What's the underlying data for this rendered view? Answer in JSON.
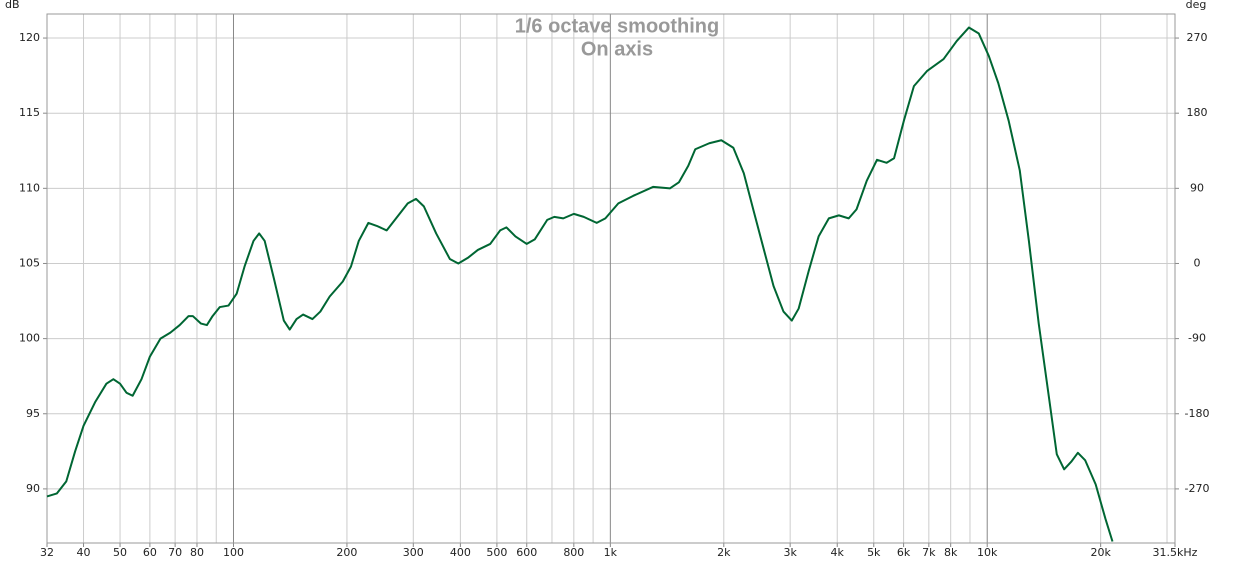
{
  "chart_data": {
    "type": "line",
    "title": "1/6 octave smoothing",
    "subtitle": "On axis",
    "ylabel": "dB",
    "y2label": "deg",
    "xlog": true,
    "grid": true,
    "color": "#006633",
    "xlim": [
      32,
      31500
    ],
    "ylim": [
      86.4,
      121.6
    ],
    "y2lim": [
      -334.8,
      298.8
    ],
    "xticks": [
      32,
      40,
      50,
      60,
      70,
      80,
      100,
      200,
      300,
      400,
      500,
      600,
      800,
      {
        "value": 1000,
        "label": "1k"
      },
      {
        "value": 2000,
        "label": "2k"
      },
      {
        "value": 3000,
        "label": "3k"
      },
      {
        "value": 4000,
        "label": "4k"
      },
      {
        "value": 5000,
        "label": "5k"
      },
      {
        "value": 6000,
        "label": "6k"
      },
      {
        "value": 7000,
        "label": "7k"
      },
      {
        "value": 8000,
        "label": "8k"
      },
      {
        "value": 10000,
        "label": "10k"
      },
      {
        "value": 20000,
        "label": "20k"
      },
      {
        "value": 31500,
        "label": "31.5kHz"
      }
    ],
    "xgrid_minor": [
      90,
      700,
      900,
      9000,
      30000
    ],
    "yticks": [
      90,
      95,
      100,
      105,
      110,
      115,
      120
    ],
    "y2ticks": [
      -270,
      -180,
      -90,
      0,
      90,
      180,
      270
    ],
    "x": [
      32,
      34,
      36,
      38,
      40,
      43,
      46,
      48,
      50,
      52,
      54,
      57,
      60,
      64,
      68,
      72,
      76,
      78,
      82,
      85,
      88,
      92,
      97,
      102,
      107,
      113,
      117,
      121,
      128,
      136,
      141,
      147,
      153,
      162,
      170,
      180,
      195,
      205,
      215,
      228,
      240,
      255,
      270,
      290,
      305,
      320,
      345,
      375,
      395,
      420,
      445,
      480,
      510,
      530,
      560,
      600,
      630,
      680,
      710,
      750,
      800,
      850,
      920,
      970,
      1050,
      1150,
      1300,
      1440,
      1520,
      1610,
      1680,
      1830,
      1970,
      2120,
      2260,
      2400,
      2550,
      2710,
      2880,
      3030,
      3160,
      3360,
      3570,
      3800,
      4040,
      4290,
      4500,
      4790,
      5100,
      5410,
      5660,
      6010,
      6390,
      6920,
      7660,
      8300,
      8940,
      9500,
      10100,
      10700,
      11400,
      12200,
      12900,
      13700,
      14600,
      15300,
      16000,
      16700,
      17400,
      18200,
      19400,
      20600,
      21500
    ],
    "values": [
      89.5,
      89.7,
      90.5,
      92.5,
      94.2,
      95.8,
      97.0,
      97.3,
      97.0,
      96.4,
      96.2,
      97.3,
      98.8,
      100.0,
      100.4,
      100.9,
      101.5,
      101.5,
      101.0,
      100.9,
      101.5,
      102.1,
      102.2,
      103.0,
      104.8,
      106.5,
      107.0,
      106.5,
      104.0,
      101.2,
      100.6,
      101.3,
      101.6,
      101.3,
      101.8,
      102.8,
      103.8,
      104.8,
      106.5,
      107.7,
      107.5,
      107.2,
      108.0,
      109.0,
      109.3,
      108.8,
      107.0,
      105.3,
      105.0,
      105.4,
      105.9,
      106.3,
      107.2,
      107.4,
      106.8,
      106.3,
      106.6,
      107.9,
      108.1,
      108.0,
      108.3,
      108.1,
      107.7,
      108.0,
      109.0,
      109.5,
      110.1,
      110.0,
      110.4,
      111.5,
      112.6,
      113.0,
      113.2,
      112.7,
      111.0,
      108.5,
      106.0,
      103.5,
      101.8,
      101.2,
      102.0,
      104.5,
      106.8,
      108.0,
      108.2,
      108.0,
      108.6,
      110.5,
      111.9,
      111.7,
      112.0,
      114.5,
      116.8,
      117.8,
      118.6,
      119.8,
      120.7,
      120.3,
      118.8,
      117.0,
      114.5,
      111.2,
      106.5,
      101.0,
      96.0,
      92.3,
      91.3,
      91.8,
      92.4,
      91.9,
      90.3,
      88.0,
      86.5
    ]
  }
}
